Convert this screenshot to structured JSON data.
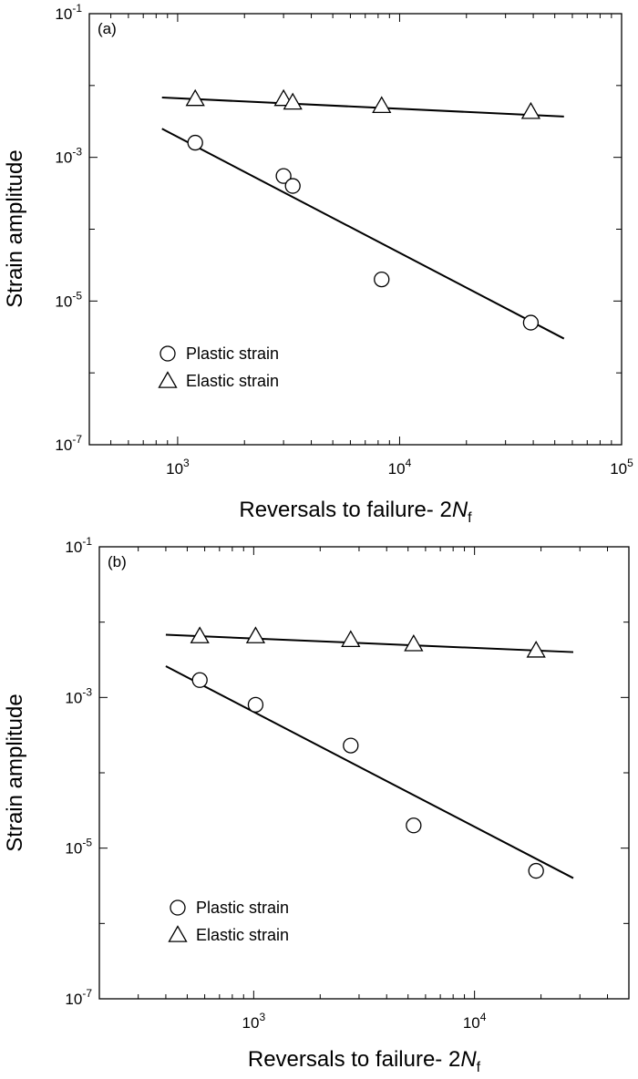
{
  "chart_data": [
    {
      "type": "scatter",
      "panel_label": "(a)",
      "xlabel": {
        "main": "Reversals to failure- 2",
        "italic": "N",
        "sub": "f"
      },
      "ylabel": "Strain amplitude",
      "x_scale": "log",
      "y_scale": "log",
      "xlim": [
        400,
        100000
      ],
      "ylim": [
        1e-07,
        0.1
      ],
      "x_ticks": [
        {
          "value": 1000,
          "base": "10",
          "exp": "3"
        },
        {
          "value": 10000,
          "base": "10",
          "exp": "4"
        },
        {
          "value": 100000,
          "base": "10",
          "exp": "5"
        }
      ],
      "y_ticks": [
        {
          "value": 1e-07,
          "base": "10",
          "exp": "-7"
        },
        {
          "value": 1e-05,
          "base": "10",
          "exp": "-5"
        },
        {
          "value": 0.001,
          "base": "10",
          "exp": "-3"
        },
        {
          "value": 0.1,
          "base": "10",
          "exp": "-1"
        }
      ],
      "legend_position": "bottom-left",
      "series": [
        {
          "name": "Plastic strain",
          "marker": "circle",
          "points": [
            {
              "x": 1200,
              "y": 0.0016
            },
            {
              "x": 3000,
              "y": 0.00055
            },
            {
              "x": 3300,
              "y": 0.0004
            },
            {
              "x": 8300,
              "y": 2e-05
            },
            {
              "x": 39000,
              "y": 5e-06
            }
          ],
          "fit": [
            {
              "x": 850,
              "y": 0.0025
            },
            {
              "x": 55000,
              "y": 3e-06
            }
          ]
        },
        {
          "name": "Elastic strain",
          "marker": "triangle",
          "points": [
            {
              "x": 1200,
              "y": 0.0065
            },
            {
              "x": 3000,
              "y": 0.0065
            },
            {
              "x": 3300,
              "y": 0.0058
            },
            {
              "x": 8300,
              "y": 0.0052
            },
            {
              "x": 39000,
              "y": 0.0043
            }
          ],
          "fit": [
            {
              "x": 850,
              "y": 0.0068
            },
            {
              "x": 55000,
              "y": 0.0037
            }
          ]
        }
      ]
    },
    {
      "type": "scatter",
      "panel_label": "(b)",
      "xlabel": {
        "main": "Reversals to failure- 2",
        "italic": "N",
        "sub": "f"
      },
      "ylabel": "Strain amplitude",
      "x_scale": "log",
      "y_scale": "log",
      "xlim": [
        200,
        50000
      ],
      "ylim": [
        1e-07,
        0.1
      ],
      "x_ticks": [
        {
          "value": 1000,
          "base": "10",
          "exp": "3"
        },
        {
          "value": 10000,
          "base": "10",
          "exp": "4"
        }
      ],
      "y_ticks": [
        {
          "value": 1e-07,
          "base": "10",
          "exp": "-7"
        },
        {
          "value": 1e-05,
          "base": "10",
          "exp": "-5"
        },
        {
          "value": 0.001,
          "base": "10",
          "exp": "-3"
        },
        {
          "value": 0.1,
          "base": "10",
          "exp": "-1"
        }
      ],
      "legend_position": "bottom-left",
      "series": [
        {
          "name": "Plastic strain",
          "marker": "circle",
          "points": [
            {
              "x": 570,
              "y": 0.0017
            },
            {
              "x": 1020,
              "y": 0.0008
            },
            {
              "x": 2750,
              "y": 0.00023
            },
            {
              "x": 5300,
              "y": 2e-05
            },
            {
              "x": 19000,
              "y": 5e-06
            }
          ],
          "fit": [
            {
              "x": 400,
              "y": 0.0026
            },
            {
              "x": 28000,
              "y": 4e-06
            }
          ]
        },
        {
          "name": "Elastic strain",
          "marker": "triangle",
          "points": [
            {
              "x": 570,
              "y": 0.0065
            },
            {
              "x": 1020,
              "y": 0.0065
            },
            {
              "x": 2750,
              "y": 0.0058
            },
            {
              "x": 5300,
              "y": 0.0051
            },
            {
              "x": 19000,
              "y": 0.0042
            }
          ],
          "fit": [
            {
              "x": 400,
              "y": 0.0068
            },
            {
              "x": 28000,
              "y": 0.004
            }
          ]
        }
      ]
    }
  ]
}
